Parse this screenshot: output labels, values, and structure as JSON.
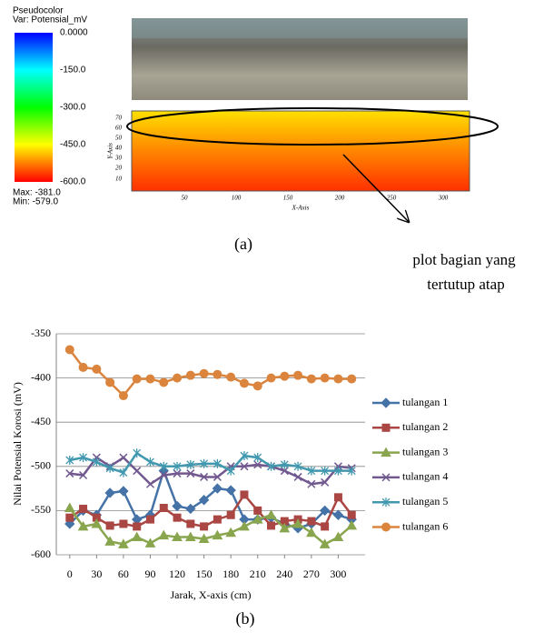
{
  "panel_a": {
    "colorbar_title": [
      "Pseudocolor",
      "Var: Potensial_mV"
    ],
    "colorbar_ticks": [
      "0.0000",
      "-150.0",
      "-300.0",
      "-450.0",
      "-600.0"
    ],
    "max_label": "Max: -381.0",
    "min_label": "Min: -579.0",
    "yticks": [
      "70",
      "60",
      "50",
      "40",
      "30",
      "20",
      "10"
    ],
    "y_label": "Y-Axis",
    "xticks": [
      "50",
      "100",
      "150",
      "200",
      "250",
      "300"
    ],
    "x_label": "X-Axis",
    "caption": "(a)",
    "annotation": [
      "plot bagian yang",
      "tertutup atap"
    ]
  },
  "chart_data": {
    "type": "line",
    "caption": "(b)",
    "x_label": "Jarak, X-axis (cm)",
    "y_label": "Nilai Potensial Korosi (mV)",
    "x": [
      0,
      15,
      30,
      45,
      60,
      75,
      90,
      105,
      120,
      135,
      150,
      165,
      180,
      195,
      210,
      225,
      240,
      255,
      270,
      285,
      300,
      315
    ],
    "xlim": [
      -15,
      330
    ],
    "xticks": [
      0,
      30,
      60,
      90,
      120,
      150,
      180,
      210,
      240,
      270,
      300
    ],
    "ylim": [
      -600,
      -350
    ],
    "yticks": [
      -600,
      -550,
      -500,
      -450,
      -400,
      -350
    ],
    "grid": true,
    "legend": "right",
    "series": [
      {
        "name": "tulangan 1",
        "color": "#4572a7",
        "marker": "diamond",
        "values": [
          -565,
          -550,
          -555,
          -530,
          -528,
          -560,
          -555,
          -505,
          -545,
          -548,
          -538,
          -525,
          -527,
          -560,
          -560,
          -558,
          -565,
          -570,
          -565,
          -550,
          -555,
          -560
        ]
      },
      {
        "name": "tulangan 2",
        "color": "#aa4643",
        "marker": "square",
        "values": [
          -558,
          -548,
          -558,
          -567,
          -565,
          -568,
          -560,
          -547,
          -558,
          -565,
          -568,
          -560,
          -555,
          -532,
          -550,
          -567,
          -562,
          -560,
          -562,
          -568,
          -535,
          -555
        ]
      },
      {
        "name": "tulangan 3",
        "color": "#89a54e",
        "marker": "triangle",
        "values": [
          -547,
          -568,
          -565,
          -585,
          -588,
          -580,
          -587,
          -578,
          -580,
          -580,
          -582,
          -578,
          -575,
          -568,
          -560,
          -555,
          -570,
          -565,
          -575,
          -588,
          -580,
          -567
        ]
      },
      {
        "name": "tulangan 4",
        "color": "#71588f",
        "marker": "cross",
        "values": [
          -508,
          -510,
          -490,
          -500,
          -490,
          -505,
          -520,
          -510,
          -508,
          -508,
          -512,
          -512,
          -500,
          -500,
          -498,
          -500,
          -505,
          -512,
          -520,
          -518,
          -500,
          -502
        ]
      },
      {
        "name": "tulangan 5",
        "color": "#4198af",
        "marker": "star",
        "values": [
          -493,
          -490,
          -495,
          -502,
          -507,
          -485,
          -495,
          -500,
          -500,
          -498,
          -497,
          -497,
          -505,
          -488,
          -490,
          -500,
          -498,
          -500,
          -505,
          -505,
          -505,
          -505
        ]
      },
      {
        "name": "tulangan 6",
        "color": "#db843d",
        "marker": "circle",
        "values": [
          -368,
          -388,
          -390,
          -405,
          -420,
          -401,
          -401,
          -405,
          -400,
          -397,
          -395,
          -396,
          -399,
          -406,
          -409,
          -400,
          -398,
          -397,
          -401,
          -400,
          -401,
          -401
        ]
      }
    ]
  }
}
